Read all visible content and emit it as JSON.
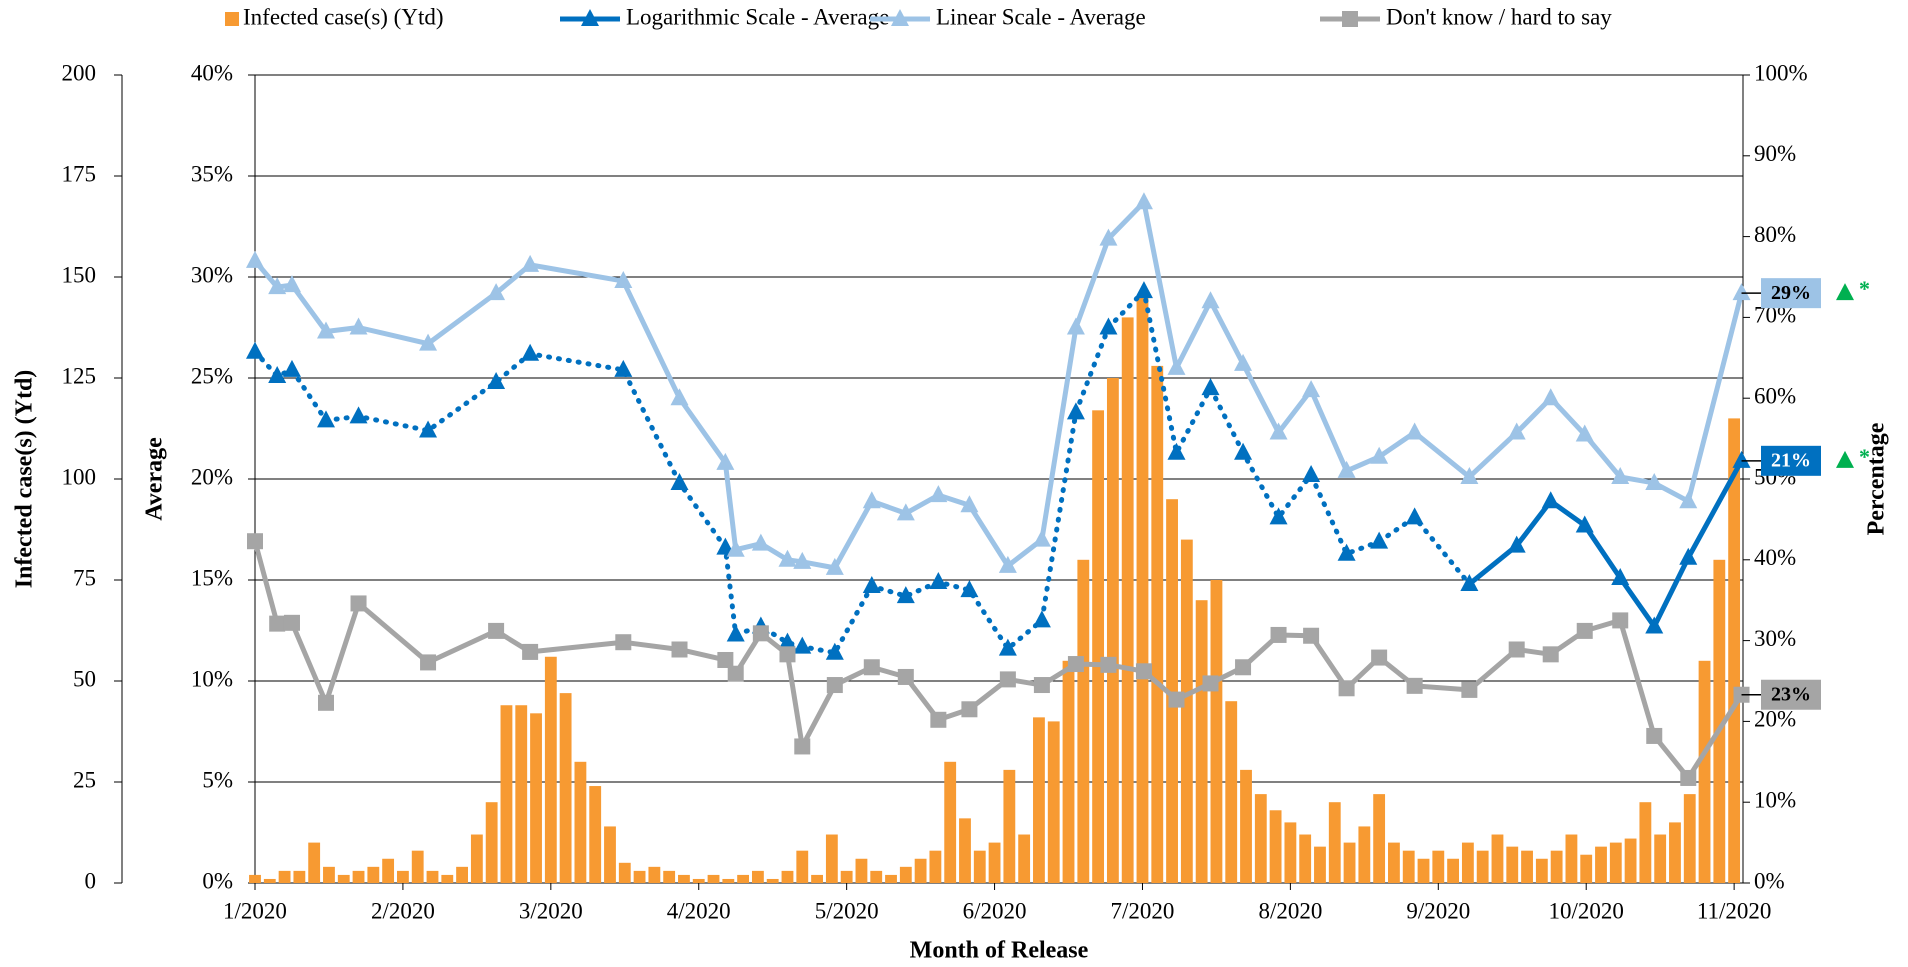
{
  "chart_data": {
    "type": "combo",
    "x_label": "Month of Release",
    "xlim": [
      0,
      10.06
    ],
    "xticks": [
      {
        "value": 0,
        "label": "1/2020"
      },
      {
        "value": 1,
        "label": "2/2020"
      },
      {
        "value": 2,
        "label": "3/2020"
      },
      {
        "value": 3,
        "label": "4/2020"
      },
      {
        "value": 4,
        "label": "5/2020"
      },
      {
        "value": 5,
        "label": "6/2020"
      },
      {
        "value": 6,
        "label": "7/2020"
      },
      {
        "value": 7,
        "label": "8/2020"
      },
      {
        "value": 8,
        "label": "9/2020"
      },
      {
        "value": 9,
        "label": "10/2020"
      },
      {
        "value": 10,
        "label": "11/2020"
      }
    ],
    "y_label": "Infected case(s) (Ytd)",
    "ylim": [
      0,
      200
    ],
    "yticks": [
      0,
      25,
      50,
      75,
      100,
      125,
      150,
      175,
      200
    ],
    "y2_label": "Average",
    "y2lim": [
      0,
      40
    ],
    "y2ticks": [
      {
        "value": 0,
        "label": "0%"
      },
      {
        "value": 5,
        "label": "5%"
      },
      {
        "value": 10,
        "label": "10%"
      },
      {
        "value": 15,
        "label": "15%"
      },
      {
        "value": 20,
        "label": "20%"
      },
      {
        "value": 25,
        "label": "25%"
      },
      {
        "value": 30,
        "label": "30%"
      },
      {
        "value": 35,
        "label": "35%"
      },
      {
        "value": 40,
        "label": "40%"
      }
    ],
    "y3_label": "Percentage",
    "y3lim": [
      0,
      100
    ],
    "y3ticks": [
      {
        "value": 0,
        "label": "0%"
      },
      {
        "value": 10,
        "label": "10%"
      },
      {
        "value": 20,
        "label": "20%"
      },
      {
        "value": 30,
        "label": "30%"
      },
      {
        "value": 40,
        "label": "40%"
      },
      {
        "value": 50,
        "label": "50%"
      },
      {
        "value": 60,
        "label": "60%"
      },
      {
        "value": 70,
        "label": "70%"
      },
      {
        "value": 80,
        "label": "80%"
      },
      {
        "value": 90,
        "label": "90%"
      },
      {
        "value": 100,
        "label": "100%"
      }
    ],
    "grid": true,
    "legend": "top",
    "x": [
      0,
      0.15,
      0.25,
      0.48,
      0.7,
      1.17,
      1.63,
      1.86,
      2.49,
      2.87,
      3.18,
      3.25,
      3.42,
      3.6,
      3.7,
      3.92,
      4.17,
      4.4,
      4.62,
      4.83,
      5.09,
      5.32,
      5.55,
      5.77,
      6.01,
      6.23,
      6.46,
      6.68,
      6.92,
      7.14,
      7.38,
      7.6,
      7.84,
      8.21,
      8.53,
      8.76,
      8.99,
      9.23,
      9.46,
      9.69,
      10.05
    ],
    "series": [
      {
        "name": "Infected case(s) (Ytd)",
        "type": "bar",
        "axis": "y",
        "color": "#F79A32",
        "x": [
          0,
          0.1,
          0.2,
          0.3,
          0.4,
          0.5,
          0.6,
          0.7,
          0.8,
          0.9,
          1,
          1.1,
          1.2,
          1.3,
          1.4,
          1.5,
          1.6,
          1.7,
          1.8,
          1.9,
          2,
          2.1,
          2.2,
          2.3,
          2.4,
          2.5,
          2.6,
          2.7,
          2.8,
          2.9,
          3,
          3.1,
          3.2,
          3.3,
          3.4,
          3.5,
          3.6,
          3.7,
          3.8,
          3.9,
          4,
          4.1,
          4.2,
          4.3,
          4.4,
          4.5,
          4.6,
          4.7,
          4.8,
          4.9,
          5,
          5.1,
          5.2,
          5.3,
          5.4,
          5.5,
          5.6,
          5.7,
          5.8,
          5.9,
          6,
          6.1,
          6.2,
          6.3,
          6.4,
          6.5,
          6.6,
          6.7,
          6.8,
          6.9,
          7,
          7.1,
          7.2,
          7.3,
          7.4,
          7.5,
          7.6,
          7.7,
          7.8,
          7.9,
          8,
          8.1,
          8.2,
          8.3,
          8.4,
          8.5,
          8.6,
          8.7,
          8.8,
          8.9,
          9,
          9.1,
          9.2,
          9.3,
          9.4,
          9.5,
          9.6,
          9.7,
          9.8,
          9.9,
          10
        ],
        "values": [
          2,
          1,
          3,
          3,
          10,
          4,
          2,
          3,
          4,
          6,
          3,
          8,
          3,
          2,
          4,
          12,
          20,
          44,
          44,
          42,
          56,
          47,
          30,
          24,
          14,
          5,
          3,
          4,
          3,
          2,
          1,
          2,
          1,
          2,
          3,
          1,
          3,
          8,
          2,
          12,
          3,
          6,
          3,
          2,
          4,
          6,
          8,
          30,
          16,
          8,
          10,
          28,
          12,
          41,
          40,
          55,
          80,
          117,
          125,
          140,
          145,
          128,
          95,
          85,
          70,
          75,
          45,
          28,
          22,
          18,
          15,
          12,
          9,
          20,
          10,
          14,
          22,
          10,
          8,
          6,
          8,
          6,
          10,
          8,
          12,
          9,
          8,
          6,
          8,
          12,
          7,
          9,
          10,
          11,
          20,
          12,
          15,
          22,
          55,
          80,
          115
        ]
      },
      {
        "name": "Logarithmic Scale - Average",
        "type": "line",
        "marker": "triangle",
        "axis": "y2",
        "color": "#0070C0",
        "label_text_color": "#ffffff",
        "note": "*",
        "note_color": "#00B050",
        "values": [
          26.3,
          25.1,
          25.4,
          22.9,
          23.1,
          22.4,
          24.8,
          26.2,
          25.4,
          19.8,
          16.6,
          12.3,
          12.7,
          11.9,
          11.7,
          11.4,
          14.7,
          14.2,
          14.9,
          14.5,
          11.6,
          13.0,
          23.3,
          27.5,
          29.3,
          21.3,
          24.5,
          21.3,
          18.1,
          20.2,
          16.3,
          16.9,
          18.1,
          14.8,
          16.7,
          18.9,
          17.7,
          15.1,
          12.7,
          16.1,
          20.9
        ],
        "styles": [
          "dotted",
          "dotted",
          "dotted",
          "dotted",
          "dotted",
          "dotted",
          "dotted",
          "dotted",
          "dotted",
          "dotted",
          "dotted",
          "dotted",
          "dotted",
          "dotted",
          "dotted",
          "dotted",
          "dotted",
          "dotted",
          "dotted",
          "dotted",
          "dotted",
          "dotted",
          "dotted",
          "dotted",
          "dotted",
          "dotted",
          "dotted",
          "dotted",
          "dotted",
          "dotted",
          "dotted",
          "dotted",
          "dotted",
          "solid",
          "solid",
          "solid",
          "solid",
          "solid",
          "solid",
          "solid",
          "solid"
        ],
        "value_labels": [
          null,
          null,
          null,
          null,
          null,
          null,
          null,
          null,
          null,
          null,
          null,
          null,
          null,
          null,
          null,
          null,
          null,
          null,
          null,
          null,
          null,
          null,
          null,
          null,
          null,
          null,
          null,
          null,
          null,
          null,
          null,
          null,
          null,
          null,
          null,
          null,
          null,
          null,
          null,
          null,
          "21%"
        ]
      },
      {
        "name": "Linear Scale - Average",
        "type": "line",
        "marker": "triangle",
        "axis": "y2",
        "color": "#9DC3E6",
        "label_text_color": "#000000",
        "note": "*",
        "note_color": "#00B050",
        "values": [
          30.8,
          29.5,
          29.6,
          27.3,
          27.5,
          26.7,
          29.2,
          30.6,
          29.8,
          24.0,
          20.8,
          16.5,
          16.8,
          16.0,
          15.9,
          15.6,
          18.9,
          18.3,
          19.2,
          18.7,
          15.7,
          17.0,
          27.5,
          31.9,
          33.7,
          25.5,
          28.8,
          25.7,
          22.3,
          24.4,
          20.4,
          21.1,
          22.3,
          20.1,
          22.3,
          24.0,
          22.2,
          20.1,
          19.8,
          18.9,
          29.2
        ],
        "value_labels": [
          null,
          null,
          null,
          null,
          null,
          null,
          null,
          null,
          null,
          null,
          null,
          null,
          null,
          null,
          null,
          null,
          null,
          null,
          null,
          null,
          null,
          null,
          null,
          null,
          null,
          null,
          null,
          null,
          null,
          null,
          null,
          null,
          null,
          null,
          null,
          null,
          null,
          null,
          null,
          null,
          "29%"
        ]
      },
      {
        "name": "Don't know / hard to say",
        "type": "line",
        "marker": "square",
        "axis": "y3",
        "color": "#A5A5A5",
        "label_text_color": "#000000",
        "values": [
          42.3,
          32.1,
          32.2,
          22.3,
          34.6,
          27.3,
          31.2,
          28.6,
          29.8,
          28.9,
          27.6,
          25.9,
          30.9,
          28.3,
          16.9,
          24.5,
          26.7,
          25.5,
          20.2,
          21.5,
          25.2,
          24.5,
          27.1,
          27.0,
          26.2,
          22.7,
          24.7,
          26.7,
          30.7,
          30.6,
          24.1,
          27.9,
          24.4,
          23.9,
          28.9,
          28.3,
          31.2,
          32.5,
          18.2,
          13.0,
          23.3
        ],
        "value_labels": [
          null,
          null,
          null,
          null,
          null,
          null,
          null,
          null,
          null,
          null,
          null,
          null,
          null,
          null,
          null,
          null,
          null,
          null,
          null,
          null,
          null,
          null,
          null,
          null,
          null,
          null,
          null,
          null,
          null,
          null,
          null,
          null,
          null,
          null,
          null,
          null,
          null,
          null,
          null,
          null,
          "23%"
        ]
      }
    ]
  }
}
